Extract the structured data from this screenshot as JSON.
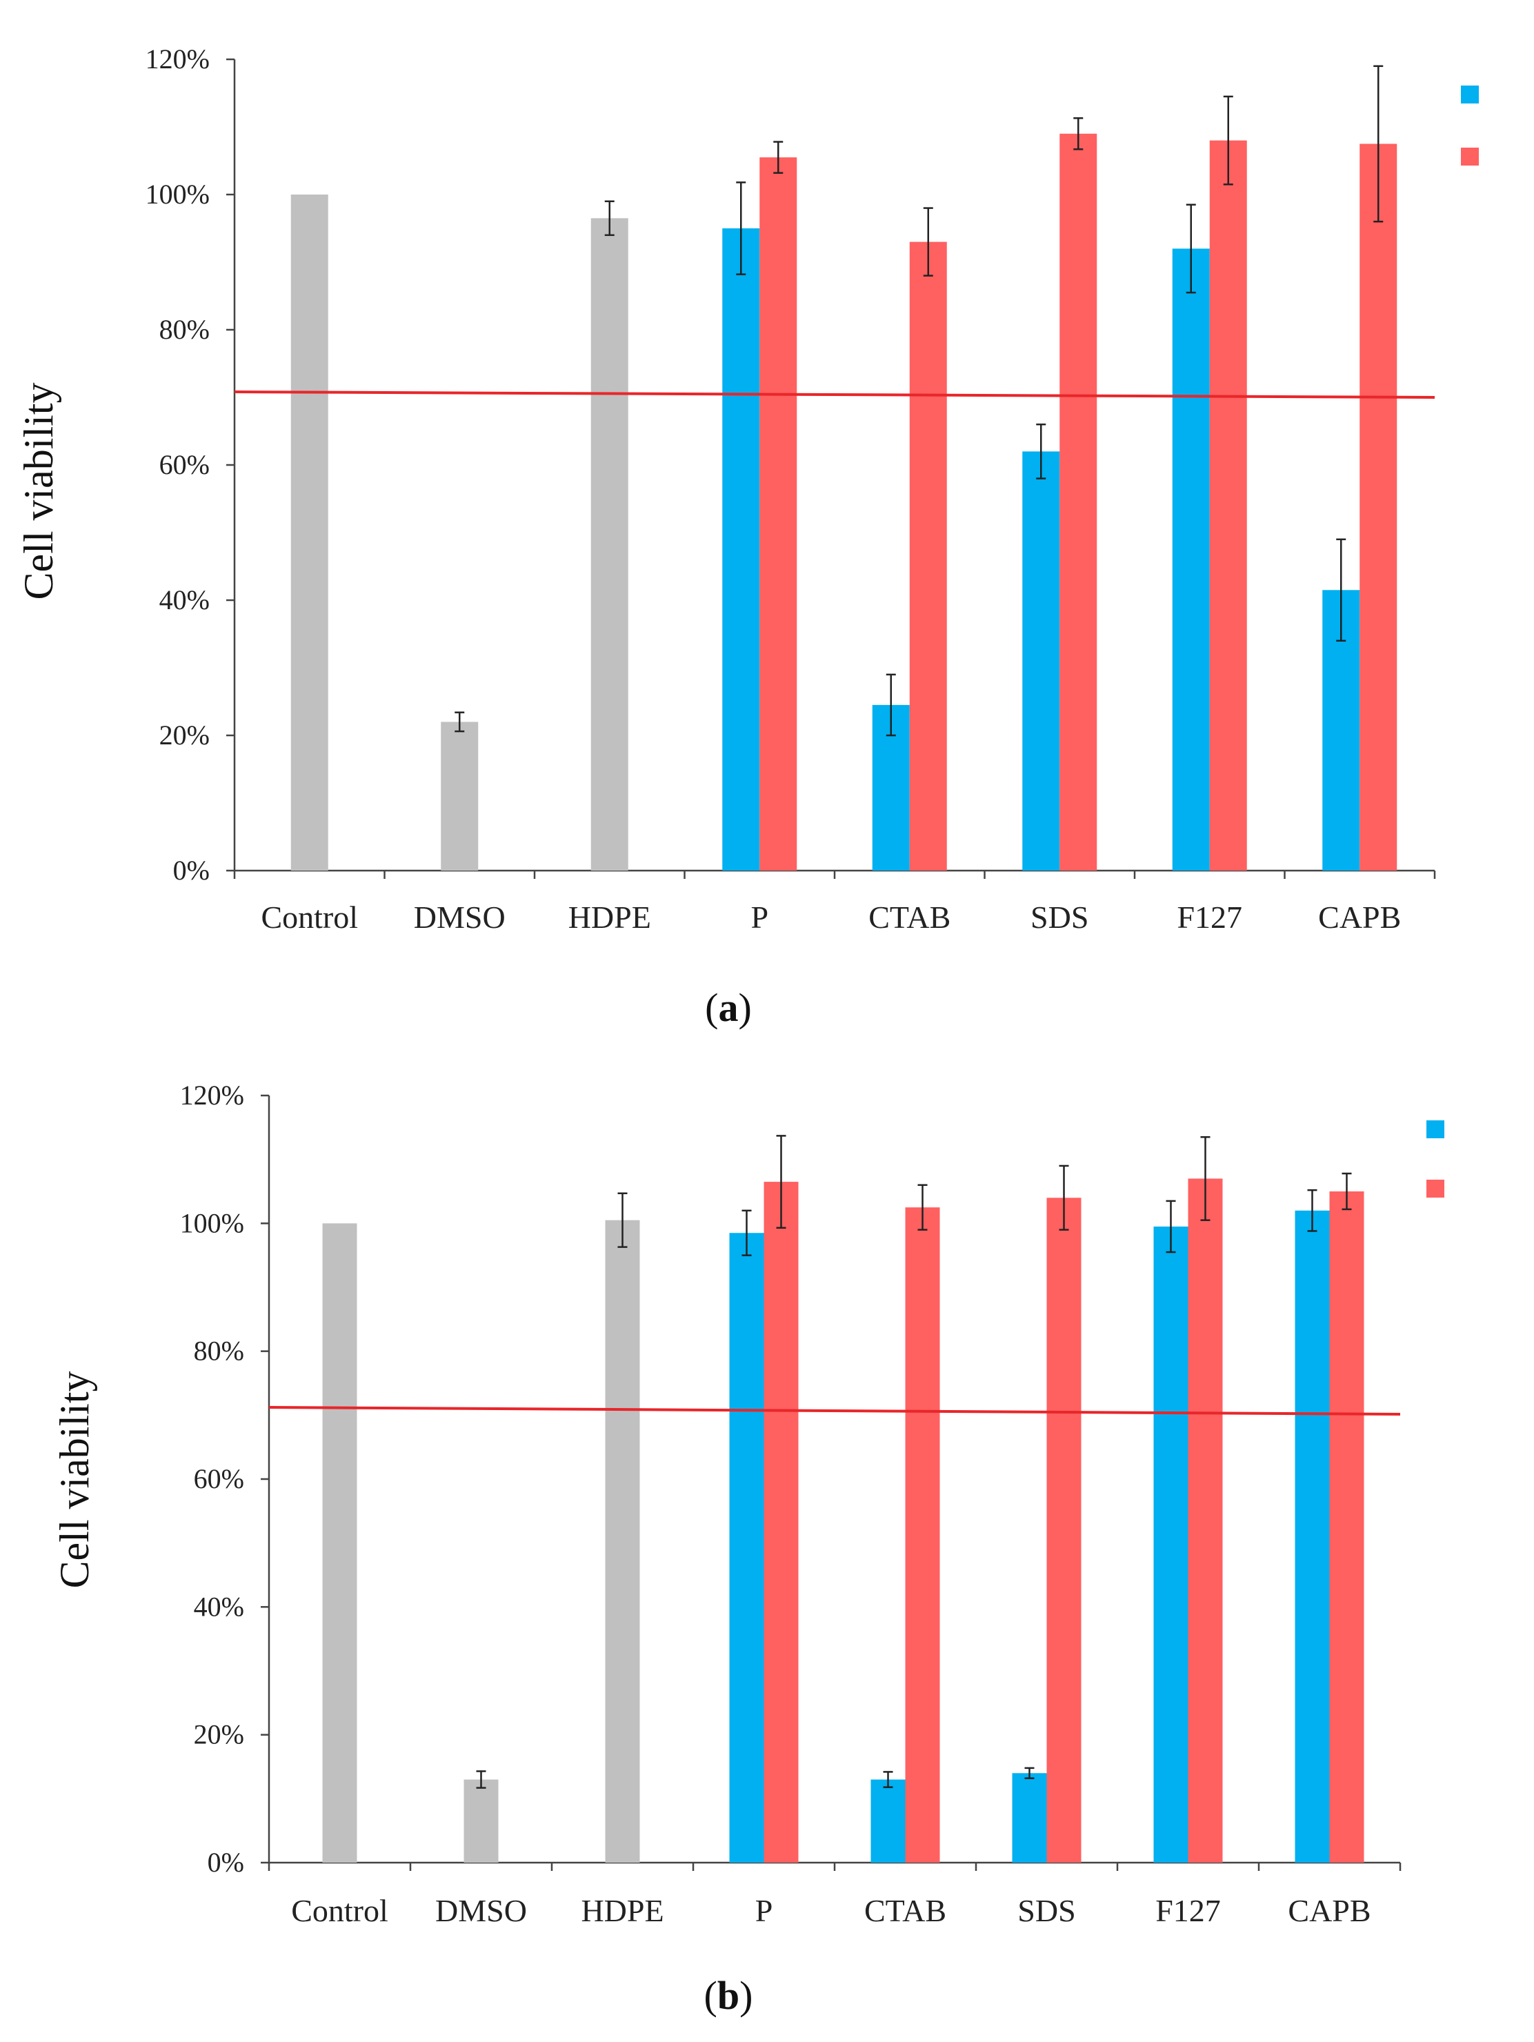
{
  "panels": [
    {
      "label": "a",
      "chart_data": {
        "type": "bar",
        "ylabel": "Cell viability",
        "xlabel": "",
        "ylim": [
          0,
          120
        ],
        "yticks": [
          "0%",
          "20%",
          "40%",
          "60%",
          "80%",
          "100%",
          "120%"
        ],
        "categories": [
          "Control",
          "DMSO",
          "HDPE",
          "P",
          "CTAB",
          "SDS",
          "F127",
          "CAPB"
        ],
        "reference_line": {
          "value": 70,
          "color": "#e8262a"
        },
        "grey": {
          "color": "#c0c0c0",
          "values": [
            100,
            22,
            96.5,
            null,
            null,
            null,
            null,
            null
          ],
          "errors": [
            0,
            1.4,
            2.5,
            null,
            null,
            null,
            null,
            null
          ]
        },
        "series": [
          {
            "color": "#00b0f0",
            "values": [
              null,
              null,
              null,
              95,
              24.5,
              62,
              92,
              41.5
            ],
            "errors": [
              null,
              null,
              null,
              6.8,
              4.5,
              4,
              6.5,
              7.5
            ]
          },
          {
            "color": "#ff6060",
            "values": [
              null,
              null,
              null,
              105.5,
              93,
              109,
              108,
              107.5
            ],
            "errors": [
              null,
              null,
              null,
              2.3,
              5,
              2.3,
              6.5,
              11.5
            ]
          }
        ],
        "legend": "top-right"
      }
    },
    {
      "label": "b",
      "chart_data": {
        "type": "bar",
        "ylabel": "Cell viability",
        "xlabel": "",
        "ylim": [
          0,
          120
        ],
        "yticks": [
          "0%",
          "20%",
          "40%",
          "60%",
          "80%",
          "100%",
          "120%"
        ],
        "categories": [
          "Control",
          "DMSO",
          "HDPE",
          "P",
          "CTAB",
          "SDS",
          "F127",
          "CAPB"
        ],
        "reference_line": {
          "value": 70,
          "color": "#e8262a"
        },
        "grey": {
          "color": "#c0c0c0",
          "values": [
            100,
            13,
            100.5,
            null,
            null,
            null,
            null,
            null
          ],
          "errors": [
            0,
            1.3,
            4.2,
            null,
            null,
            null,
            null,
            null
          ]
        },
        "series": [
          {
            "color": "#00b0f0",
            "values": [
              null,
              null,
              null,
              98.5,
              13,
              14,
              99.5,
              102
            ],
            "errors": [
              null,
              null,
              null,
              3.5,
              1.2,
              0.8,
              4,
              3.2
            ]
          },
          {
            "color": "#ff6060",
            "values": [
              null,
              null,
              null,
              106.5,
              102.5,
              104,
              107,
              105
            ],
            "errors": [
              null,
              null,
              null,
              7.2,
              3.5,
              5,
              6.5,
              2.8
            ]
          }
        ],
        "legend": "top-right"
      }
    }
  ]
}
